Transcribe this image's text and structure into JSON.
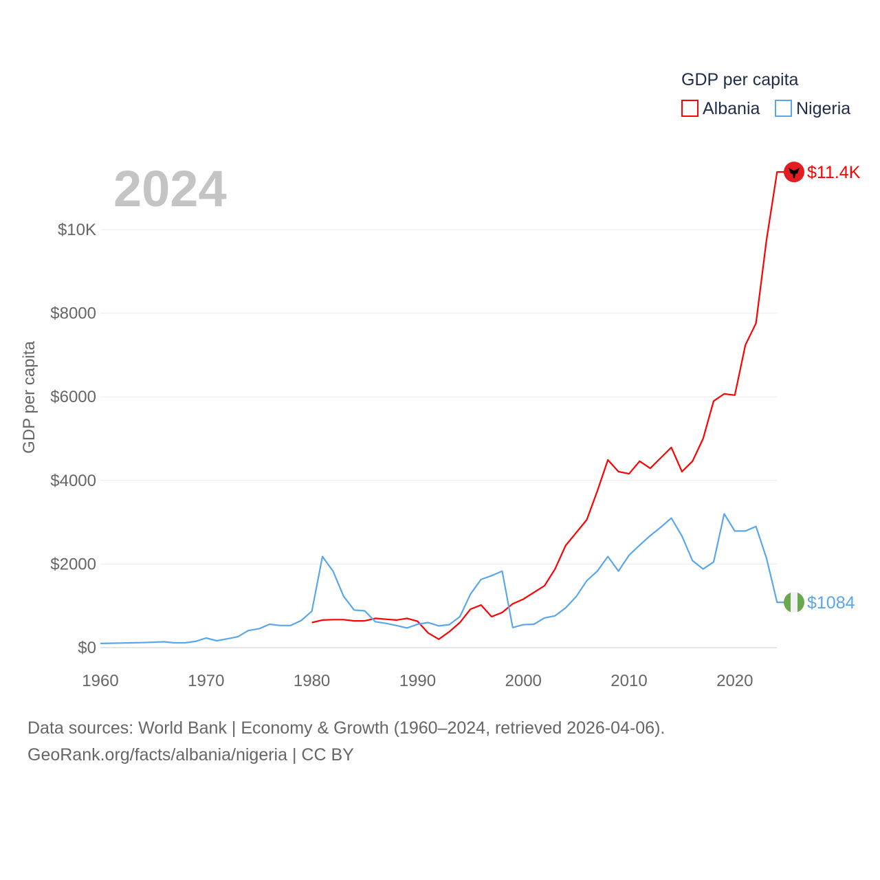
{
  "chart_data": {
    "type": "line",
    "title": "GDP per capita",
    "year_label": "2024",
    "xlabel": "",
    "ylabel": "GDP per capita",
    "xlim": [
      1960,
      2024
    ],
    "ylim": [
      0,
      11400
    ],
    "grid": true,
    "legend_placement": "top-right",
    "x_ticks": [
      1960,
      1970,
      1980,
      1990,
      2000,
      2010,
      2020
    ],
    "x_tick_labels": [
      "1960",
      "1970",
      "1980",
      "1990",
      "2000",
      "2010",
      "2020"
    ],
    "y_ticks": [
      0,
      2000,
      4000,
      6000,
      8000,
      10000
    ],
    "y_tick_labels": [
      "$0",
      "$2000",
      "$4000",
      "$6000",
      "$8000",
      "$10K"
    ],
    "series": [
      {
        "name": "Albania",
        "color": "#ff0000",
        "end_label": "$11.4K",
        "start_year": 1980,
        "values": [
          600,
          660,
          670,
          670,
          640,
          640,
          700,
          680,
          660,
          700,
          630,
          350,
          200,
          380,
          600,
          920,
          1020,
          740,
          840,
          1050,
          1160,
          1320,
          1480,
          1880,
          2440,
          2750,
          3060,
          3750,
          4490,
          4210,
          4160,
          4460,
          4290,
          4540,
          4790,
          4210,
          4460,
          5000,
          5900,
          6070,
          6040,
          7240,
          7760,
          9750,
          11380
        ]
      },
      {
        "name": "Nigeria",
        "color": "#5aa6ea",
        "end_label": "$1084",
        "start_year": 1960,
        "values": [
          100,
          105,
          110,
          115,
          120,
          130,
          140,
          115,
          115,
          150,
          230,
          165,
          210,
          260,
          410,
          450,
          560,
          530,
          530,
          650,
          870,
          2180,
          1830,
          1230,
          900,
          880,
          620,
          580,
          530,
          470,
          560,
          600,
          520,
          550,
          740,
          1280,
          1630,
          1720,
          1830,
          480,
          550,
          560,
          710,
          760,
          950,
          1220,
          1600,
          1830,
          2180,
          1830,
          2210,
          2450,
          2680,
          2880,
          3100,
          2670,
          2080,
          1880,
          2050,
          3200,
          2790,
          2790,
          2900,
          2140,
          1084
        ]
      }
    ]
  },
  "footer": {
    "line1": "Data sources: World Bank | Economy & Growth (1960–2024, retrieved 2026-04-06).",
    "line2": "GeoRank.org/facts/albania/nigeria | CC BY"
  }
}
